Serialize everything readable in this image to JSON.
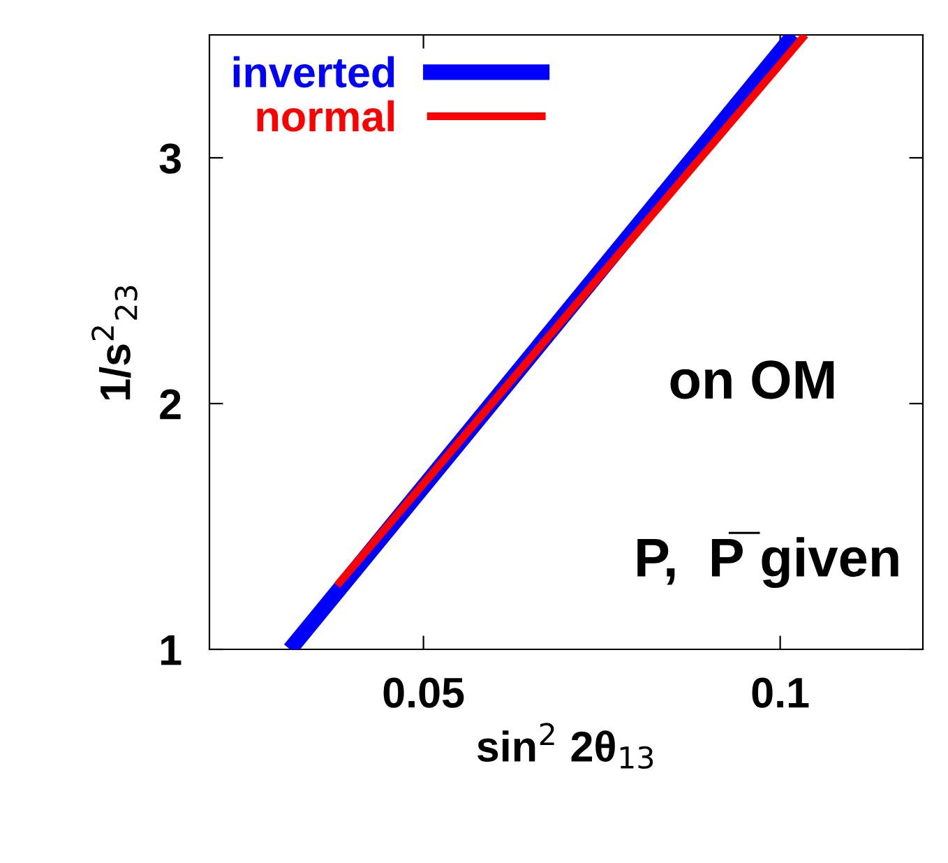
{
  "chart_data": {
    "type": "line",
    "xlabel": "sin$^{2}$ 2θ$_{13}$",
    "ylabel": "1/s$^{2}$$_{23}$",
    "series": [
      {
        "name": "inverted",
        "color": "#0000ff",
        "x": [
          0.0313,
          0.1019
        ],
        "values": [
          1.0,
          3.5
        ]
      },
      {
        "name": "normal",
        "color": "#ff0000",
        "x": [
          0.0379,
          0.1035
        ],
        "values": [
          1.26,
          3.5
        ]
      }
    ],
    "xlim": [
      0.02,
      0.12
    ],
    "ylim": [
      1,
      3.5
    ],
    "xticks": [
      0.05,
      0.1
    ],
    "yticks": [
      1,
      2,
      3
    ],
    "annotations": [
      "on OM",
      "P,  P̅ given"
    ],
    "legend": "top left",
    "grid": false,
    "marker": "none",
    "line_style": "solid"
  }
}
